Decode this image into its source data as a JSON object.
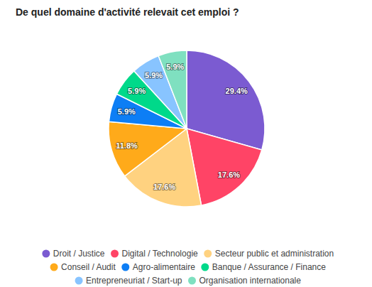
{
  "chart_data": {
    "type": "pie",
    "title": "De quel domaine d'activité relevait cet emploi ?",
    "categories": [
      "Droit / Justice",
      "Digital / Technologie",
      "Secteur public et administration",
      "Conseil / Audit",
      "Agro-alimentaire",
      "Banque / Assurance / Finance",
      "Entrepreneuriat / Start-up",
      "Organisation internationale"
    ],
    "values": [
      29.4,
      17.6,
      17.6,
      11.8,
      5.9,
      5.9,
      5.9,
      5.9
    ],
    "value_labels": [
      "29.4%",
      "17.6%",
      "17.6%",
      "11.8%",
      "5.9%",
      "5.9%",
      "5.9%",
      "5.9%"
    ],
    "colors": [
      "#7b5bd1",
      "#ff4466",
      "#ffd280",
      "#ffaa1a",
      "#0d7ef5",
      "#00d98a",
      "#88c4ff",
      "#7fe0c0"
    ],
    "data_labels": true,
    "legend": "bottom"
  }
}
